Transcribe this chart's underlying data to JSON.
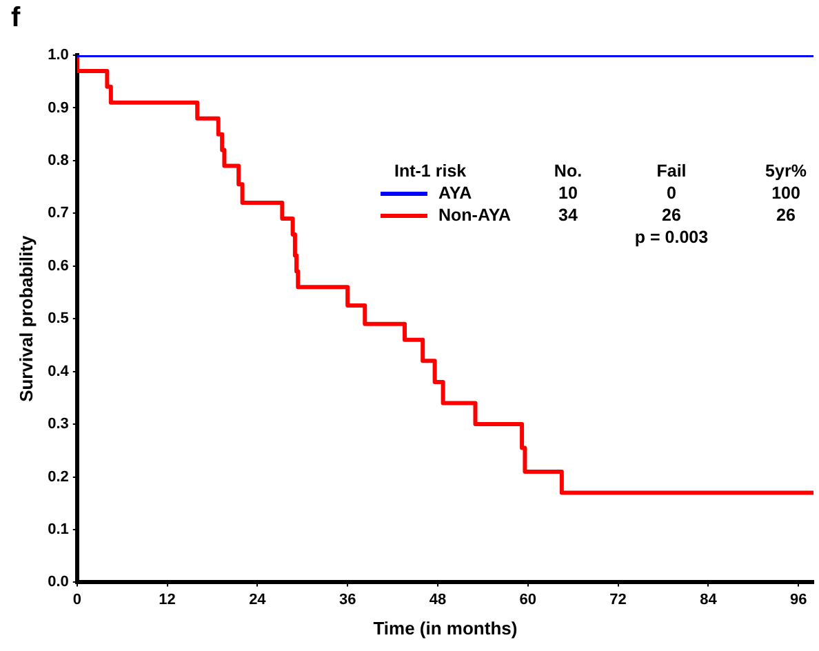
{
  "chart_data": {
    "type": "step",
    "title": "f",
    "xlabel": "Time (in months)",
    "ylabel": "Survival probability",
    "xlim": [
      0,
      98
    ],
    "xticks": [
      0,
      12,
      24,
      36,
      48,
      60,
      72,
      84,
      96
    ],
    "ylim": [
      0,
      1
    ],
    "yticks": [
      {
        "value": 0,
        "label": "0.0"
      },
      {
        "value": 0.1,
        "label": "0.1"
      },
      {
        "value": 0.2,
        "label": "0.2"
      },
      {
        "value": 0.3,
        "label": "0.3"
      },
      {
        "value": 0.4,
        "label": "0.4"
      },
      {
        "value": 0.5,
        "label": "0.5"
      },
      {
        "value": 0.6,
        "label": "0.6"
      },
      {
        "value": 0.7,
        "label": "0.7"
      },
      {
        "value": 0.8,
        "label": "0.8"
      },
      {
        "value": 0.9,
        "label": "0.9"
      },
      {
        "value": 1,
        "label": "1.0"
      }
    ],
    "grid": false,
    "legend": "top right",
    "marker": "none",
    "line_style": "solid",
    "series": [
      {
        "name": "AYA",
        "color": "#0000ff",
        "x": [
          0,
          98
        ],
        "values": [
          1,
          1
        ]
      },
      {
        "name": "Non-AYA",
        "color": "#ff0000",
        "x": [
          0,
          4,
          4.5,
          16,
          18.8,
          19.3,
          19.6,
          21.5,
          22,
          27.3,
          28.7,
          29,
          29.2,
          29.4,
          36,
          38.3,
          43.6,
          46,
          47.6,
          48.7,
          53,
          59.2,
          59.6,
          64.5,
          65.3,
          98
        ],
        "values": [
          1,
          0.97,
          0.94,
          0.91,
          0.88,
          0.85,
          0.82,
          0.79,
          0.755,
          0.72,
          0.69,
          0.66,
          0.62,
          0.59,
          0.56,
          0.525,
          0.49,
          0.46,
          0.42,
          0.38,
          0.34,
          0.3,
          0.255,
          0.21,
          0.17,
          0.17
        ]
      }
    ],
    "annotations": [
      "Int-1 risk",
      "5yr%",
      "100",
      "26",
      "No.",
      "10",
      "34",
      "Fail",
      "0",
      "26",
      "p = 0.003"
    ]
  }
}
